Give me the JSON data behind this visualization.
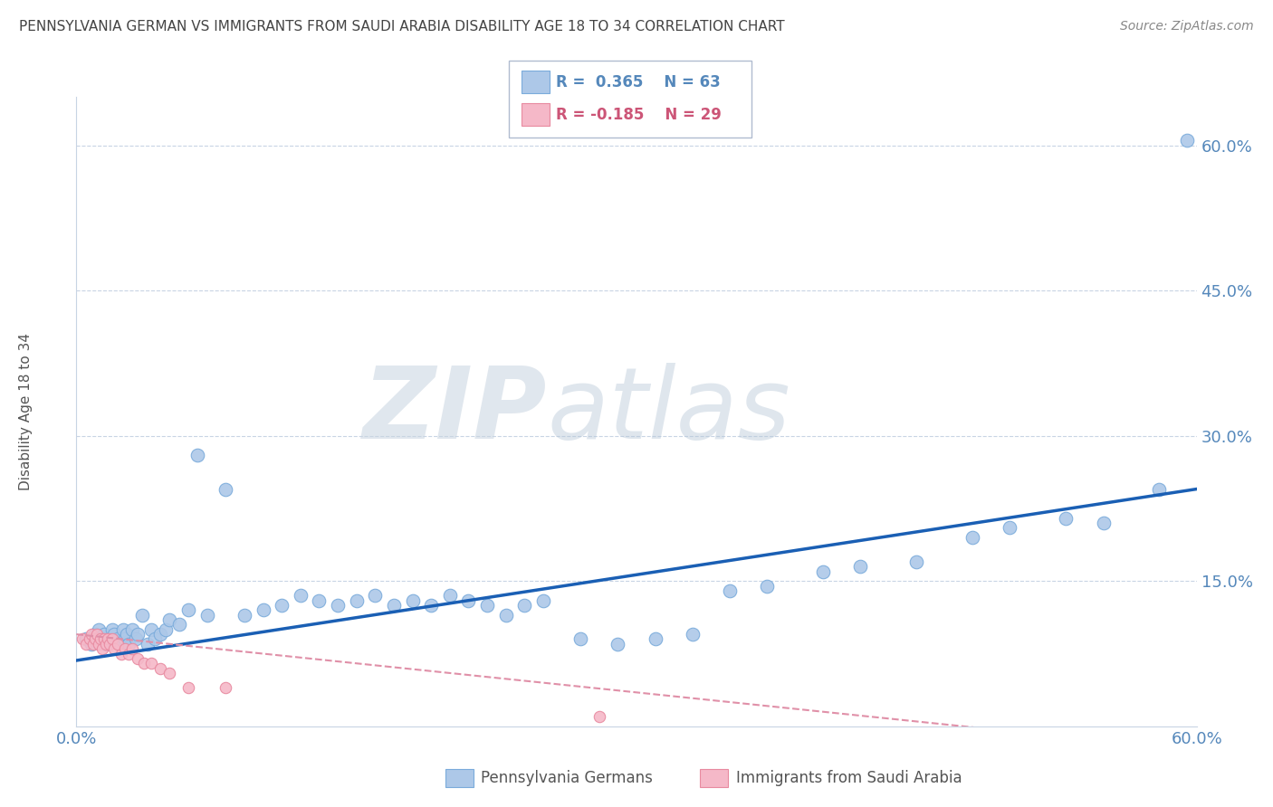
{
  "title": "PENNSYLVANIA GERMAN VS IMMIGRANTS FROM SAUDI ARABIA DISABILITY AGE 18 TO 34 CORRELATION CHART",
  "source_text": "Source: ZipAtlas.com",
  "ylabel": "Disability Age 18 to 34",
  "xlim": [
    0.0,
    0.6
  ],
  "ylim": [
    0.0,
    0.65
  ],
  "ytick_labels": [
    "15.0%",
    "30.0%",
    "45.0%",
    "60.0%"
  ],
  "ytick_positions": [
    0.15,
    0.3,
    0.45,
    0.6
  ],
  "blue_R": 0.365,
  "blue_N": 63,
  "pink_R": -0.185,
  "pink_N": 29,
  "blue_color": "#adc8e8",
  "blue_edge_color": "#7aabdb",
  "pink_color": "#f5b8c8",
  "pink_edge_color": "#e88aa0",
  "trend_blue_color": "#1a5fb4",
  "trend_pink_color": "#e090a8",
  "background_color": "#ffffff",
  "grid_color": "#c8d4e4",
  "title_color": "#444444",
  "axis_color": "#5588bb",
  "watermark_zip_color": "#c8d4e0",
  "watermark_atlas_color": "#b8c8d8",
  "blue_scatter_x": [
    0.005,
    0.008,
    0.01,
    0.012,
    0.013,
    0.015,
    0.016,
    0.018,
    0.019,
    0.02,
    0.022,
    0.023,
    0.025,
    0.026,
    0.027,
    0.028,
    0.03,
    0.032,
    0.033,
    0.035,
    0.038,
    0.04,
    0.042,
    0.045,
    0.048,
    0.05,
    0.055,
    0.06,
    0.065,
    0.07,
    0.08,
    0.09,
    0.1,
    0.11,
    0.12,
    0.13,
    0.14,
    0.15,
    0.16,
    0.17,
    0.18,
    0.19,
    0.2,
    0.21,
    0.22,
    0.23,
    0.24,
    0.25,
    0.27,
    0.29,
    0.31,
    0.33,
    0.35,
    0.37,
    0.4,
    0.42,
    0.45,
    0.48,
    0.5,
    0.53,
    0.55,
    0.58,
    0.595
  ],
  "blue_scatter_y": [
    0.09,
    0.085,
    0.095,
    0.1,
    0.09,
    0.095,
    0.085,
    0.09,
    0.1,
    0.095,
    0.09,
    0.085,
    0.1,
    0.09,
    0.095,
    0.085,
    0.1,
    0.09,
    0.095,
    0.115,
    0.085,
    0.1,
    0.09,
    0.095,
    0.1,
    0.11,
    0.105,
    0.12,
    0.28,
    0.115,
    0.245,
    0.115,
    0.12,
    0.125,
    0.135,
    0.13,
    0.125,
    0.13,
    0.135,
    0.125,
    0.13,
    0.125,
    0.135,
    0.13,
    0.125,
    0.115,
    0.125,
    0.13,
    0.09,
    0.085,
    0.09,
    0.095,
    0.14,
    0.145,
    0.16,
    0.165,
    0.17,
    0.195,
    0.205,
    0.215,
    0.21,
    0.245,
    0.605
  ],
  "pink_scatter_x": [
    0.003,
    0.005,
    0.007,
    0.008,
    0.009,
    0.01,
    0.011,
    0.012,
    0.013,
    0.014,
    0.015,
    0.016,
    0.017,
    0.018,
    0.019,
    0.02,
    0.022,
    0.024,
    0.026,
    0.028,
    0.03,
    0.033,
    0.036,
    0.04,
    0.045,
    0.05,
    0.06,
    0.08,
    0.28
  ],
  "pink_scatter_y": [
    0.09,
    0.085,
    0.09,
    0.095,
    0.085,
    0.09,
    0.095,
    0.085,
    0.09,
    0.08,
    0.09,
    0.085,
    0.09,
    0.085,
    0.09,
    0.08,
    0.085,
    0.075,
    0.08,
    0.075,
    0.08,
    0.07,
    0.065,
    0.065,
    0.06,
    0.055,
    0.04,
    0.04,
    0.01
  ],
  "blue_trend_x": [
    0.0,
    0.6
  ],
  "blue_trend_y": [
    0.068,
    0.245
  ],
  "pink_trend_x": [
    0.0,
    0.5
  ],
  "pink_trend_y": [
    0.095,
    -0.005
  ]
}
